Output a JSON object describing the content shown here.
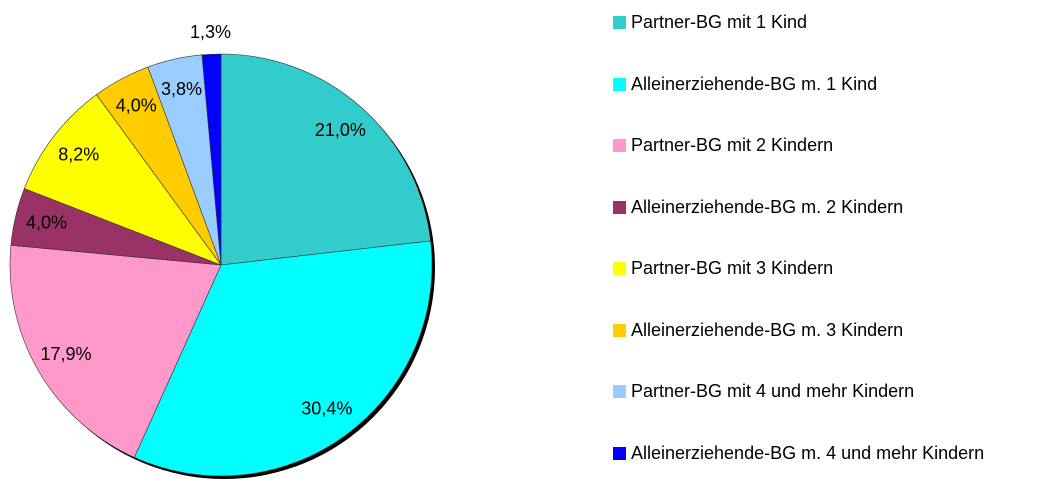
{
  "chart_data": {
    "type": "pie",
    "categories": [
      "Partner-BG mit 1 Kind",
      "Alleinerziehende-BG m. 1 Kind",
      "Partner-BG mit 2 Kindern",
      "Alleinerziehende-BG m. 2 Kindern",
      "Partner-BG mit 3 Kindern",
      "Alleinerziehende-BG m. 3 Kindern",
      "Partner-BG mit 4 und mehr Kindern",
      "Alleinerziehende-BG m. 4 und mehr Kindern"
    ],
    "values": [
      21.0,
      30.4,
      17.9,
      4.0,
      8.2,
      4.0,
      3.8,
      1.3
    ],
    "value_labels": [
      "21,0%",
      "30,4%",
      "17,9%",
      "4,0%",
      "8,2%",
      "4,0%",
      "3,8%",
      "1,3%"
    ],
    "colors": [
      "#33cccc",
      "#00ffff",
      "#ff99cc",
      "#993366",
      "#ffff00",
      "#ffcc00",
      "#99ccff",
      "#0000ff"
    ],
    "legend": "right"
  }
}
